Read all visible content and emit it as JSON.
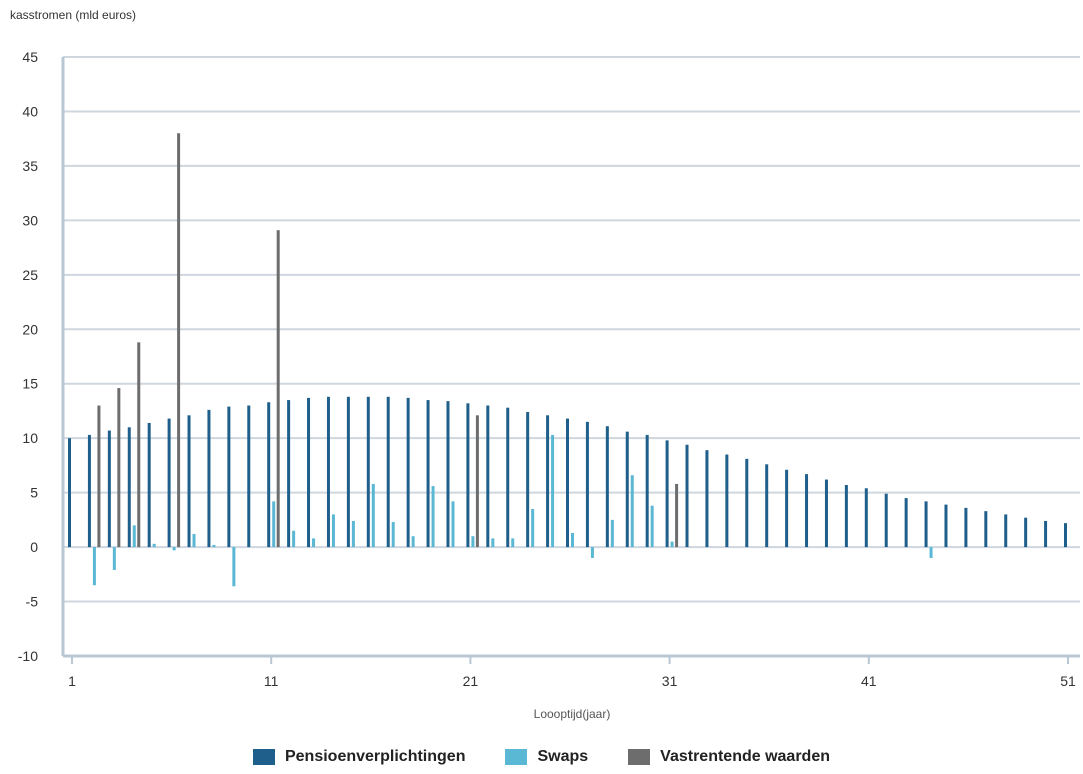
{
  "chart_data": {
    "type": "bar",
    "ylabel": "kasstromen (mld euros)",
    "xlabel": "Loooptijd(jaar)",
    "ylim": [
      -10,
      45
    ],
    "yticks": [
      -10,
      -5,
      0,
      5,
      10,
      15,
      20,
      25,
      30,
      35,
      40,
      45
    ],
    "xlim": [
      1,
      51
    ],
    "xticks": [
      1,
      11,
      21,
      31,
      41,
      51
    ],
    "grid": true,
    "legend_position": "bottom",
    "series": [
      {
        "name": "Pensioenverplichtingen",
        "color": "#1f5f8b",
        "points": [
          [
            1,
            10.0
          ],
          [
            2,
            10.3
          ],
          [
            3,
            10.7
          ],
          [
            4,
            11.0
          ],
          [
            5,
            11.4
          ],
          [
            6,
            11.8
          ],
          [
            7,
            12.1
          ],
          [
            8,
            12.6
          ],
          [
            9,
            12.9
          ],
          [
            10,
            13.0
          ],
          [
            11,
            13.3
          ],
          [
            12,
            13.5
          ],
          [
            13,
            13.7
          ],
          [
            14,
            13.8
          ],
          [
            15,
            13.8
          ],
          [
            16,
            13.8
          ],
          [
            17,
            13.8
          ],
          [
            18,
            13.7
          ],
          [
            19,
            13.5
          ],
          [
            20,
            13.4
          ],
          [
            21,
            13.2
          ],
          [
            22,
            13.0
          ],
          [
            23,
            12.8
          ],
          [
            24,
            12.4
          ],
          [
            25,
            12.1
          ],
          [
            26,
            11.8
          ],
          [
            27,
            11.5
          ],
          [
            28,
            11.1
          ],
          [
            29,
            10.6
          ],
          [
            30,
            10.3
          ],
          [
            31,
            9.8
          ],
          [
            32,
            9.4
          ],
          [
            33,
            8.9
          ],
          [
            34,
            8.5
          ],
          [
            35,
            8.1
          ],
          [
            36,
            7.6
          ],
          [
            37,
            7.1
          ],
          [
            38,
            6.7
          ],
          [
            39,
            6.2
          ],
          [
            40,
            5.7
          ],
          [
            41,
            5.4
          ],
          [
            42,
            4.9
          ],
          [
            43,
            4.5
          ],
          [
            44,
            4.2
          ],
          [
            45,
            3.9
          ],
          [
            46,
            3.6
          ],
          [
            47,
            3.3
          ],
          [
            48,
            3.0
          ],
          [
            49,
            2.7
          ],
          [
            50,
            2.4
          ],
          [
            51,
            2.2
          ]
        ]
      },
      {
        "name": "Swaps",
        "color": "#5bb8d4",
        "points": [
          [
            2,
            -3.5
          ],
          [
            3,
            -2.1
          ],
          [
            4,
            2.0
          ],
          [
            5,
            0.3
          ],
          [
            6,
            -0.3
          ],
          [
            7,
            1.2
          ],
          [
            8,
            0.2
          ],
          [
            9,
            -3.6
          ],
          [
            11,
            4.2
          ],
          [
            12,
            1.5
          ],
          [
            13,
            0.8
          ],
          [
            14,
            3.0
          ],
          [
            15,
            2.4
          ],
          [
            16,
            5.8
          ],
          [
            17,
            2.3
          ],
          [
            18,
            1.0
          ],
          [
            19,
            5.6
          ],
          [
            20,
            4.2
          ],
          [
            21,
            1.0
          ],
          [
            22,
            0.8
          ],
          [
            23,
            0.8
          ],
          [
            24,
            3.5
          ],
          [
            25,
            10.3
          ],
          [
            26,
            1.3
          ],
          [
            27,
            -1.0
          ],
          [
            28,
            2.5
          ],
          [
            29,
            6.6
          ],
          [
            30,
            3.8
          ],
          [
            31,
            0.5
          ],
          [
            44,
            -1.0
          ]
        ]
      },
      {
        "name": "Vastrentende waarden",
        "color": "#6d6d6d",
        "points": [
          [
            2,
            13.0
          ],
          [
            3,
            14.6
          ],
          [
            4,
            18.8
          ],
          [
            6,
            38.0
          ],
          [
            11,
            29.1
          ],
          [
            21,
            12.1
          ],
          [
            31,
            5.8
          ]
        ]
      }
    ]
  }
}
